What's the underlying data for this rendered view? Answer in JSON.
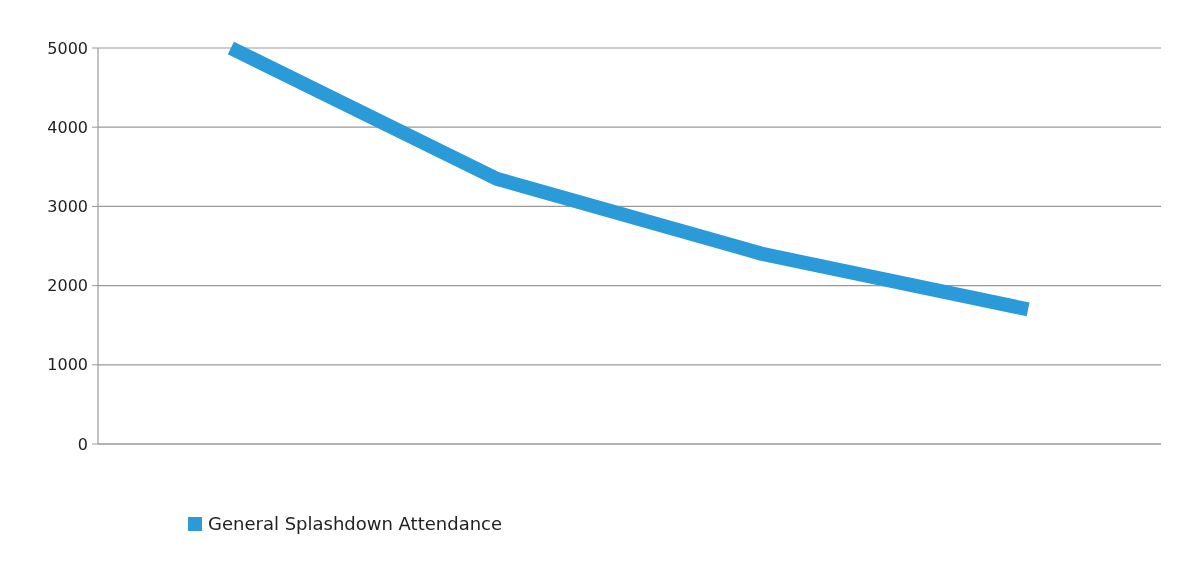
{
  "chart_data": {
    "type": "line",
    "categories": [
      null,
      null,
      null,
      null
    ],
    "series": [
      {
        "name": "General Splashdown Attendance",
        "color": "#2a9ad8",
        "values": [
          5000,
          3350,
          2400,
          1700
        ]
      }
    ],
    "ylim": [
      0,
      5000
    ],
    "yticks": [
      0,
      1000,
      2000,
      3000,
      4000,
      5000
    ],
    "grid": "y",
    "legend": "bottom",
    "marker": "none",
    "line_style": "solid"
  }
}
